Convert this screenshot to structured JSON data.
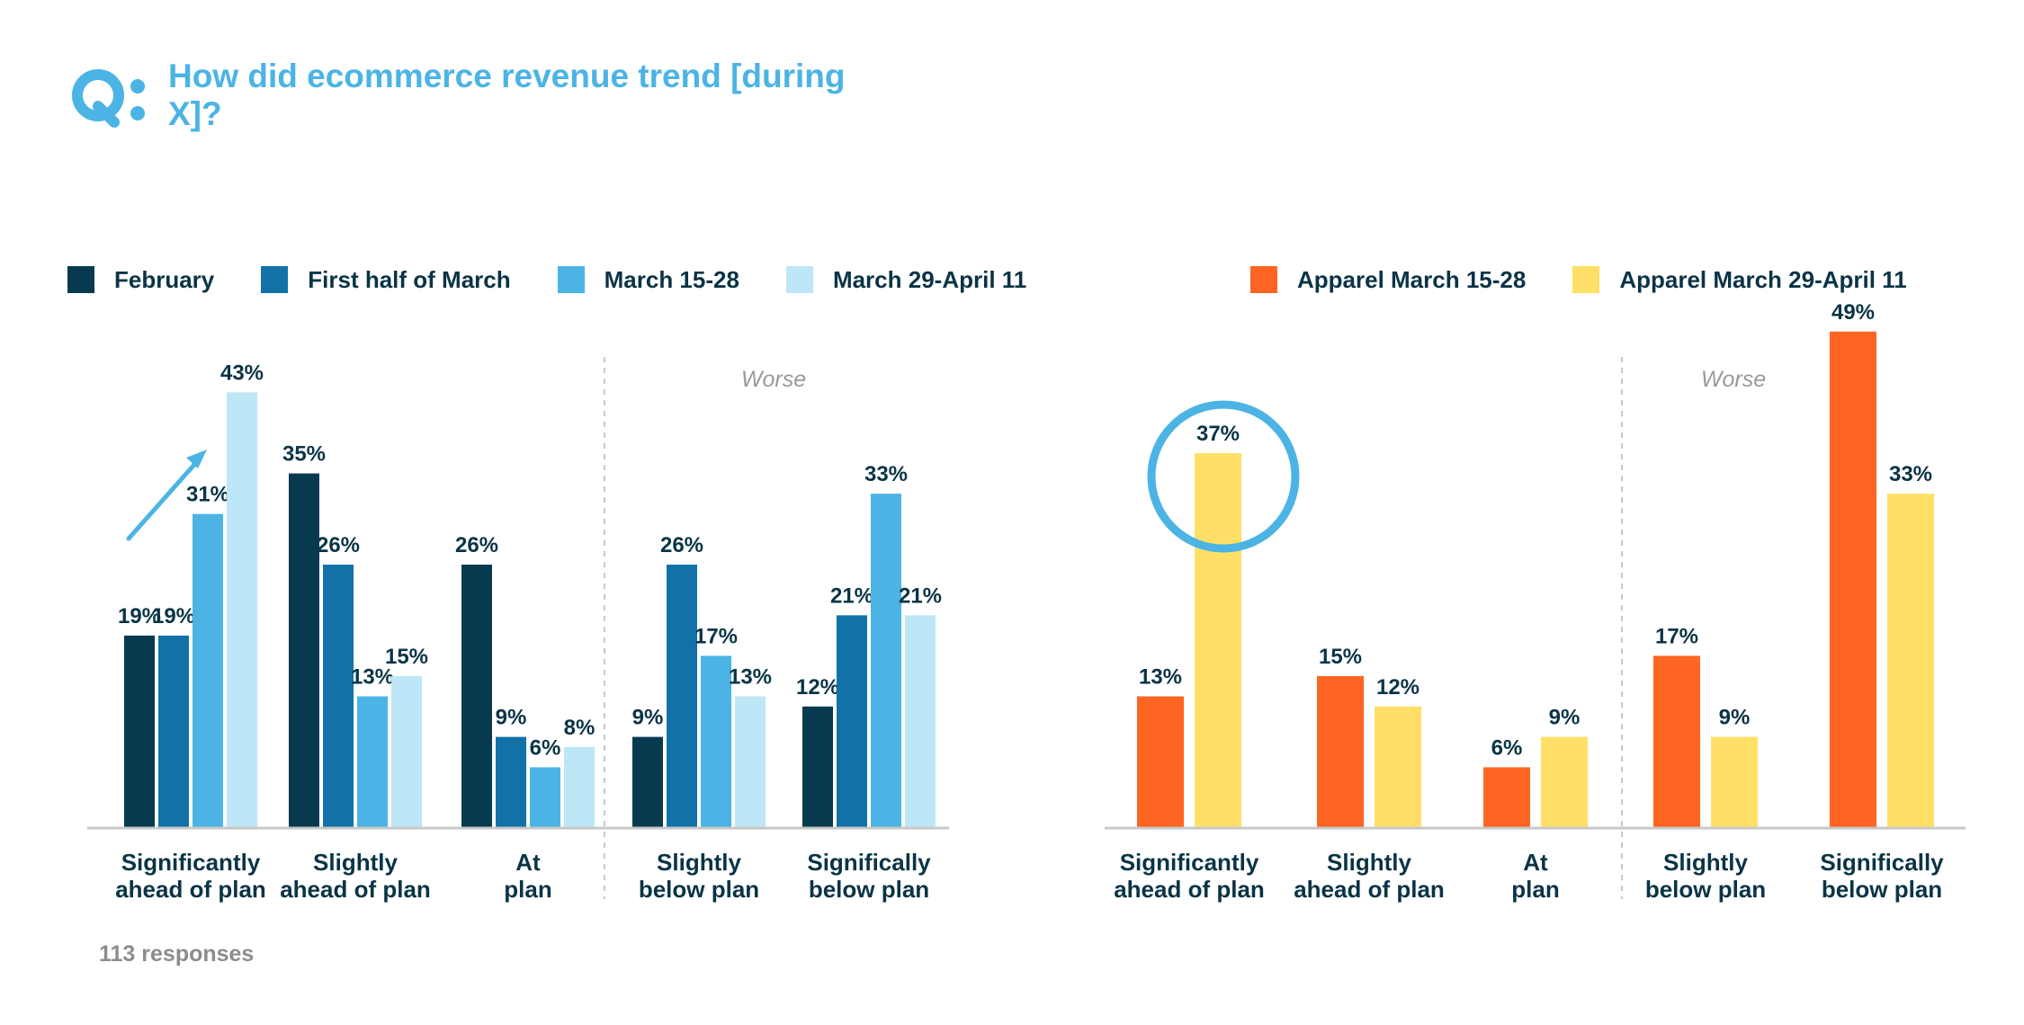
{
  "title": "How did ecommerce revenue trend [during X]?",
  "footnote": "113 responses",
  "colors": {
    "title": "#4bb4e4",
    "text": "#0a3446",
    "axis": "#c8c8c8",
    "divider": "#c8c8c8",
    "worse_label": "#9a9a9a",
    "highlight": "#4bb4e4"
  },
  "legend_left": [
    {
      "label": "February",
      "color": "#073a4f"
    },
    {
      "label": "First half of March",
      "color": "#1272a8"
    },
    {
      "label": "March 15-28",
      "color": "#4bb4e4"
    },
    {
      "label": "March 29-April 11",
      "color": "#bde6f7"
    }
  ],
  "legend_right": [
    {
      "label": "Apparel March 15-28",
      "color": "#fe6422"
    },
    {
      "label": "Apparel March 29-April 11",
      "color": "#ffdf66"
    }
  ],
  "chart_data": [
    {
      "type": "bar",
      "categories": [
        "Significantly ahead of plan",
        "Slightly ahead of plan",
        "At plan",
        "Slightly below plan",
        "Significally below plan"
      ],
      "series": [
        {
          "name": "February",
          "values": [
            19,
            35,
            26,
            9,
            12
          ]
        },
        {
          "name": "First half of March",
          "values": [
            19,
            26,
            9,
            26,
            21
          ]
        },
        {
          "name": "March 15-28",
          "values": [
            31,
            13,
            6,
            17,
            33
          ]
        },
        {
          "name": "March 29-April 11",
          "values": [
            43,
            15,
            8,
            13,
            21
          ]
        }
      ],
      "value_suffix": "%",
      "divider_label": "Worse",
      "annotation": "arrow pointing to 43%"
    },
    {
      "type": "bar",
      "categories": [
        "Significantly ahead of plan",
        "Slightly ahead of plan",
        "At plan",
        "Slightly below plan",
        "Significally below plan"
      ],
      "series": [
        {
          "name": "Apparel March 15-28",
          "values": [
            13,
            15,
            6,
            17,
            49
          ]
        },
        {
          "name": "Apparel March 29-April 11",
          "values": [
            37,
            12,
            9,
            9,
            33
          ]
        }
      ],
      "value_suffix": "%",
      "divider_label": "Worse",
      "annotation": "circle around 37%"
    }
  ]
}
